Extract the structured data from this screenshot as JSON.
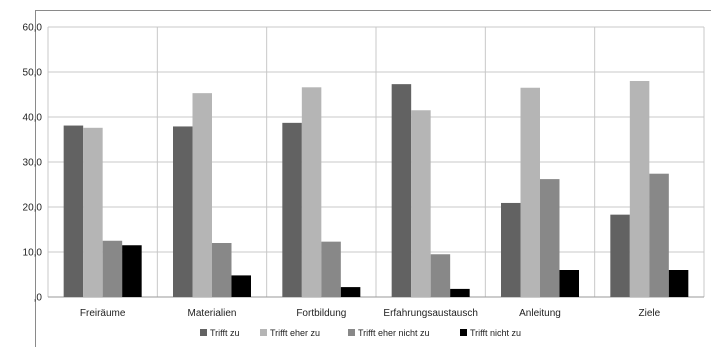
{
  "chart_data": {
    "type": "bar",
    "categories": [
      "Freiräume",
      "Materialien",
      "Fortbildung",
      "Erfahrungsaustausch",
      "Anleitung",
      "Ziele"
    ],
    "series": [
      {
        "name": "Trifft zu",
        "color": "#626262",
        "values": [
          38.1,
          37.9,
          38.7,
          47.3,
          20.9,
          18.3
        ]
      },
      {
        "name": "Trifft eher zu",
        "color": "#b5b5b5",
        "values": [
          37.6,
          45.3,
          46.6,
          41.5,
          46.5,
          48.0
        ]
      },
      {
        "name": "Trifft eher nicht zu",
        "color": "#888888",
        "values": [
          12.5,
          12.0,
          12.3,
          9.5,
          26.2,
          27.4
        ]
      },
      {
        "name": "Trifft nicht zu",
        "color": "#000000",
        "values": [
          11.5,
          4.8,
          2.2,
          1.8,
          6.0,
          6.0
        ]
      }
    ],
    "y_tick_labels": [
      ",0",
      "10,0",
      "20,0",
      "30,0",
      "40,0",
      "50,0",
      "60,0"
    ],
    "ylim": [
      0,
      60
    ],
    "grid": true,
    "legend_position": "bottom"
  }
}
